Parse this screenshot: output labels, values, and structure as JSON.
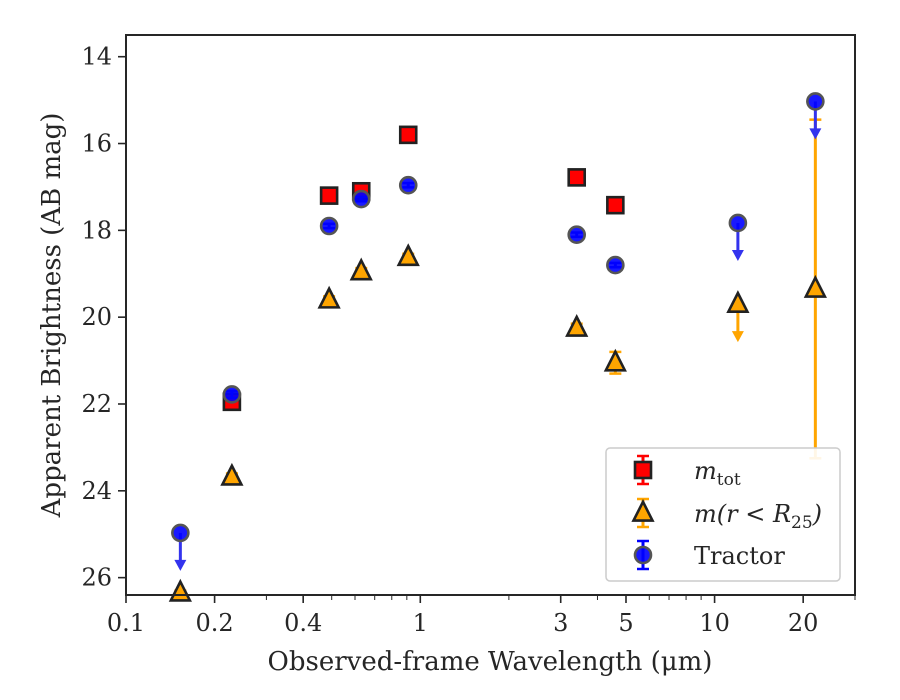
{
  "chart_data": {
    "type": "scatter",
    "title": "",
    "xlabel": "Observed-frame Wavelength (μm)",
    "ylabel": "Apparent Brightness (AB mag)",
    "xscale": "log",
    "xlim": [
      0.1,
      30
    ],
    "ylim": [
      26.4,
      13.5
    ],
    "y_inverted": true,
    "x_ticks": [
      0.1,
      0.2,
      0.4,
      1,
      3,
      5,
      10,
      20
    ],
    "x_tick_labels": [
      "0.1",
      "0.2",
      "0.4",
      "1",
      "3",
      "5",
      "10",
      "20"
    ],
    "y_ticks": [
      14,
      16,
      18,
      20,
      22,
      24,
      26
    ],
    "y_tick_labels": [
      "14",
      "16",
      "18",
      "20",
      "22",
      "24",
      "26"
    ],
    "legend_position": "lower-right",
    "colors": {
      "m_tot": "#ff0000",
      "m_r25": "#ffa500",
      "tractor": "#0000ff",
      "tractor_arrow": "#3333ee",
      "edge": "#222222"
    },
    "series": [
      {
        "key": "m_tot",
        "legend_prefix": "m",
        "legend_sub": "tot",
        "marker": "square",
        "points": [
          {
            "x": 0.229,
            "y": 21.95,
            "err": 0.12
          },
          {
            "x": 0.49,
            "y": 17.2,
            "err": 0.1
          },
          {
            "x": 0.63,
            "y": 17.1,
            "err": 0.12
          },
          {
            "x": 0.91,
            "y": 15.8,
            "err": 0.1
          },
          {
            "x": 3.4,
            "y": 16.78,
            "err": 0.1
          },
          {
            "x": 4.6,
            "y": 17.42,
            "err": 0.1
          }
        ]
      },
      {
        "key": "m_r25",
        "legend_prefix": "m(r < R",
        "legend_sub": "25",
        "legend_suffix": ")",
        "marker": "triangle",
        "points": [
          {
            "x": 0.153,
            "y": 26.35,
            "err": 0.05
          },
          {
            "x": 0.229,
            "y": 23.68,
            "err": 0.08
          },
          {
            "x": 0.49,
            "y": 19.6,
            "err": 0.08
          },
          {
            "x": 0.63,
            "y": 18.95,
            "err": 0.08
          },
          {
            "x": 0.91,
            "y": 18.62,
            "err": 0.08
          },
          {
            "x": 3.4,
            "y": 20.25,
            "err": 0.1
          },
          {
            "x": 4.6,
            "y": 21.05,
            "err": 0.25
          },
          {
            "x": 12,
            "y": 19.7,
            "upper_limit": true
          },
          {
            "x": 22,
            "y": 19.35,
            "err_low": 3.9,
            "err_high": 3.9
          }
        ]
      },
      {
        "key": "tractor",
        "legend_prefix": "Tractor",
        "marker": "circle",
        "points": [
          {
            "x": 0.153,
            "y": 24.97,
            "upper_limit": true
          },
          {
            "x": 0.229,
            "y": 21.78,
            "err": 0.08
          },
          {
            "x": 0.49,
            "y": 17.9,
            "err": 0.05
          },
          {
            "x": 0.63,
            "y": 17.28,
            "err": 0.05
          },
          {
            "x": 0.91,
            "y": 16.96,
            "err": 0.05
          },
          {
            "x": 3.4,
            "y": 18.1,
            "err": 0.05
          },
          {
            "x": 4.6,
            "y": 18.8,
            "err": 0.05
          },
          {
            "x": 12,
            "y": 17.83,
            "upper_limit": true
          },
          {
            "x": 22,
            "y": 15.03,
            "upper_limit": true
          }
        ]
      }
    ]
  }
}
